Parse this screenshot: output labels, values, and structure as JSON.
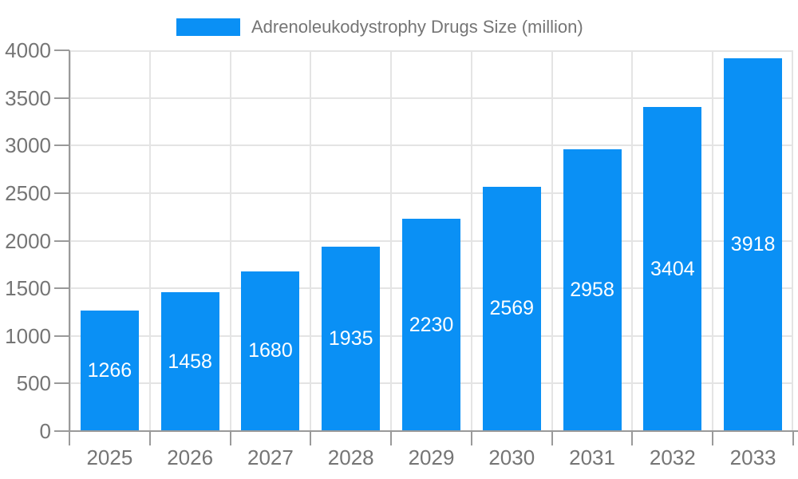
{
  "chart_data": {
    "type": "bar",
    "title": "Adrenoleukodystrophy Drugs Size (million)",
    "categories": [
      "2025",
      "2026",
      "2027",
      "2028",
      "2029",
      "2030",
      "2031",
      "2032",
      "2033"
    ],
    "values": [
      1266,
      1458,
      1680,
      1935,
      2230,
      2569,
      2958,
      3404,
      3918
    ],
    "xlabel": "",
    "ylabel": "",
    "ylim": [
      0,
      4000
    ],
    "yticks": [
      0,
      500,
      1000,
      1500,
      2000,
      2500,
      3000,
      3500,
      4000
    ],
    "grid": true,
    "legend_position": "top-center",
    "bar_label_position": "inside-center",
    "colors": {
      "bar": "#0a90f5",
      "bar_label": "#ffffff",
      "axis_text": "#757575",
      "legend_text": "#757575",
      "axis_line": "#9a9a9a",
      "grid": "#e4e4e4",
      "background": "#ffffff"
    }
  }
}
